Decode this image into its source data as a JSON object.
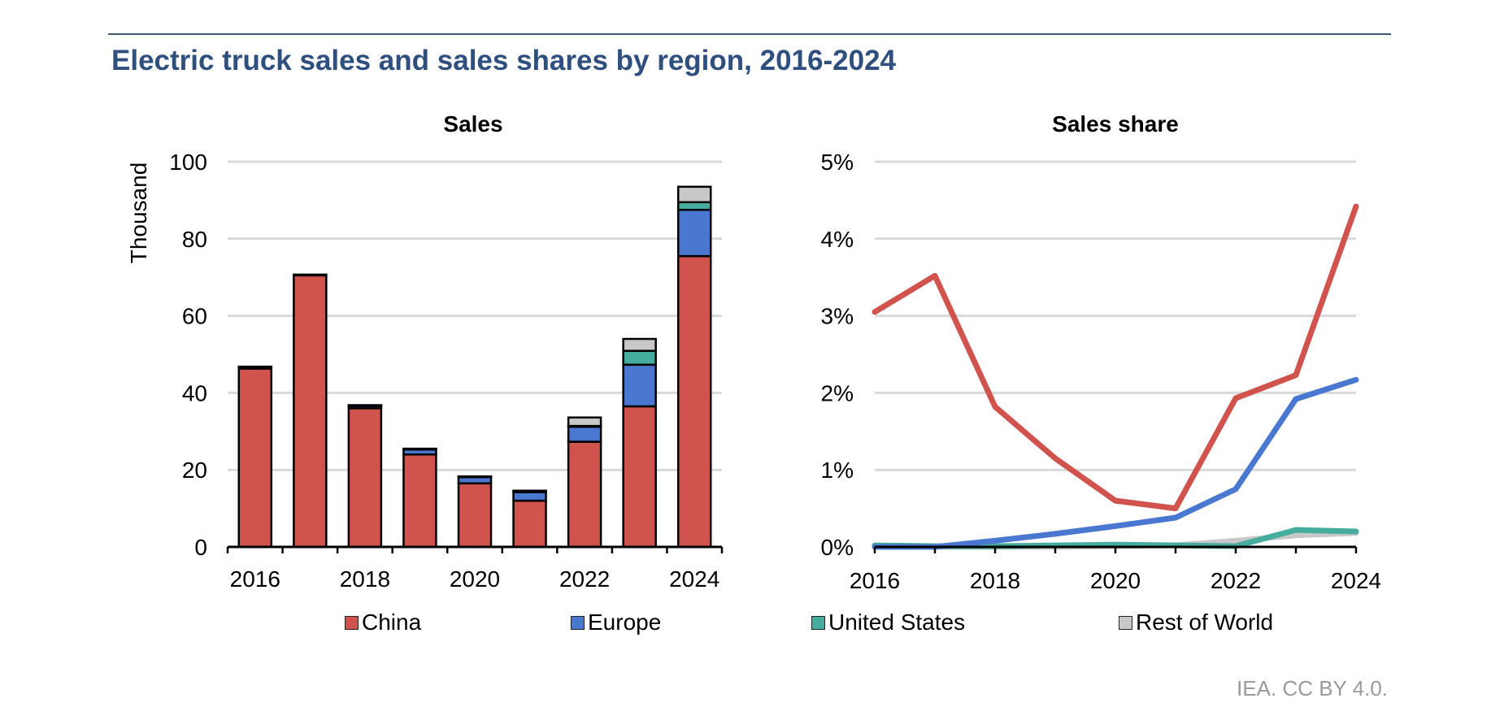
{
  "title": "Electric truck sales and sales shares by region, 2016-2024",
  "source": "IEA. CC BY 4.0.",
  "colors": {
    "China": "#d0534d",
    "Europe": "#4a78d0",
    "United States": "#45ac9e",
    "Rest of World": "#c8c8c8"
  },
  "legend": [
    "China",
    "Europe",
    "United States",
    "Rest of World"
  ],
  "chart_data": [
    {
      "type": "bar",
      "stacked": true,
      "title": "Sales",
      "ylabel": "Thousand",
      "ylim": [
        0,
        100
      ],
      "yticks": [
        0,
        20,
        40,
        60,
        80,
        100
      ],
      "categories": [
        "2016",
        "2017",
        "2018",
        "2019",
        "2020",
        "2021",
        "2022",
        "2023",
        "2024"
      ],
      "xtick_labels": [
        "2016",
        "",
        "2018",
        "",
        "2020",
        "",
        "2022",
        "",
        "2024"
      ],
      "grid": true,
      "series": [
        {
          "name": "China",
          "values": [
            46.3,
            70.5,
            36.0,
            24.0,
            16.5,
            12.0,
            27.3,
            36.5,
            75.5
          ]
        },
        {
          "name": "Europe",
          "values": [
            0.3,
            0.2,
            0.6,
            1.3,
            1.6,
            2.2,
            3.9,
            10.8,
            12.0
          ]
        },
        {
          "name": "United States",
          "values": [
            0.1,
            0.0,
            0.1,
            0.1,
            0.1,
            0.2,
            0.2,
            3.6,
            2.0
          ]
        },
        {
          "name": "Rest of World",
          "values": [
            0.1,
            0.0,
            0.1,
            0.1,
            0.1,
            0.2,
            2.2,
            3.1,
            4.0
          ]
        }
      ]
    },
    {
      "type": "line",
      "title": "Sales share",
      "ylabel": "",
      "ylim": [
        0,
        5
      ],
      "yticks": [
        0,
        1,
        2,
        3,
        4,
        5
      ],
      "ytick_labels": [
        "0%",
        "1%",
        "2%",
        "3%",
        "4%",
        "5%"
      ],
      "x": [
        2016,
        2017,
        2018,
        2019,
        2020,
        2021,
        2022,
        2023,
        2024
      ],
      "xtick_labels": [
        "2016",
        "2018",
        "2020",
        "2022",
        "2024"
      ],
      "xticks": [
        2016,
        2018,
        2020,
        2022,
        2024
      ],
      "grid": true,
      "series": [
        {
          "name": "China",
          "values": [
            3.05,
            3.52,
            1.82,
            1.15,
            0.6,
            0.5,
            1.93,
            2.23,
            4.42
          ]
        },
        {
          "name": "Europe",
          "values": [
            0.0,
            0.0,
            0.08,
            0.17,
            0.27,
            0.38,
            0.75,
            1.92,
            2.17
          ]
        },
        {
          "name": "United States",
          "values": [
            0.02,
            0.01,
            0.01,
            0.02,
            0.03,
            0.02,
            0.01,
            0.22,
            0.2
          ]
        },
        {
          "name": "Rest of World",
          "values": [
            0.0,
            0.0,
            0.0,
            0.0,
            0.01,
            0.02,
            0.08,
            0.15,
            0.18
          ]
        }
      ]
    }
  ]
}
